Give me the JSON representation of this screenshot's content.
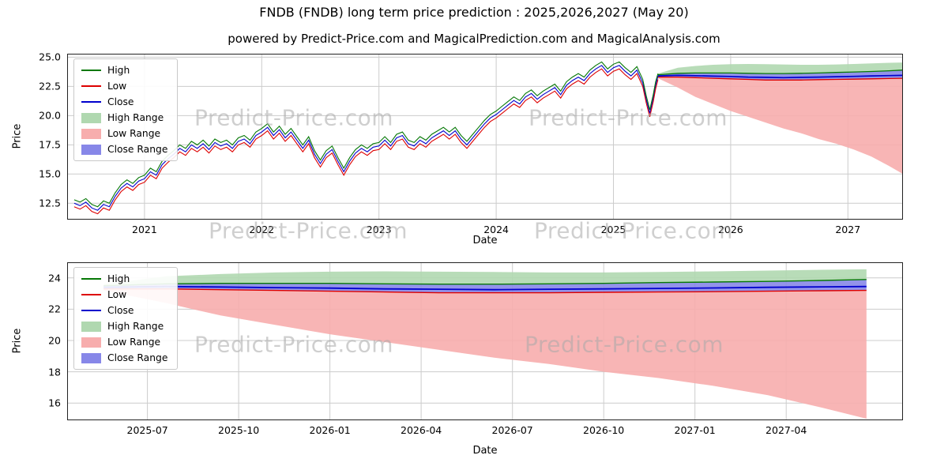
{
  "figure": {
    "title": "FNDB (FNDB) long term price prediction : 2025,2026,2027 (May 20)",
    "subtitle": "powered by Predict-Price.com and MagicalPrediction.com and MagicalAnalysis.com"
  },
  "watermark": {
    "text": "Predict-Price.com"
  },
  "legend": {
    "entries": [
      {
        "label": "High",
        "kind": "line",
        "color": "#067806"
      },
      {
        "label": "Low",
        "kind": "line",
        "color": "#dd0000"
      },
      {
        "label": "Close",
        "kind": "line",
        "color": "#0000cd"
      },
      {
        "label": "High Range",
        "kind": "patch",
        "color": "#b0d8b0"
      },
      {
        "label": "Low Range",
        "kind": "patch",
        "color": "#f7adad"
      },
      {
        "label": "Close Range",
        "kind": "patch",
        "color": "#8787e8"
      }
    ]
  },
  "chart_data": [
    {
      "type": "line",
      "name": "history-and-prediction",
      "xlabel": "Date",
      "ylabel": "Price",
      "xlim": [
        2020.34,
        2027.47
      ],
      "ylim": [
        11.1,
        25.3
      ],
      "grid_color": "#cccccc",
      "xticks": [
        {
          "v": 2021,
          "label": "2021"
        },
        {
          "v": 2022,
          "label": "2022"
        },
        {
          "v": 2023,
          "label": "2023"
        },
        {
          "v": 2024,
          "label": "2024"
        },
        {
          "v": 2025,
          "label": "2025"
        },
        {
          "v": 2026,
          "label": "2026"
        },
        {
          "v": 2027,
          "label": "2027"
        }
      ],
      "yticks": [
        {
          "v": 12.5,
          "label": "12.5"
        },
        {
          "v": 15.0,
          "label": "15.0"
        },
        {
          "v": 17.5,
          "label": "17.5"
        },
        {
          "v": 20.0,
          "label": "20.0"
        },
        {
          "v": 22.5,
          "label": "22.5"
        },
        {
          "v": 25.0,
          "label": "25.0"
        }
      ],
      "bands": [
        {
          "name": "low-range-band",
          "x": "pred_x",
          "top": "pred_close_lo",
          "bottom": "pred_low",
          "color": "#f7adad",
          "opacity": 0.9
        },
        {
          "name": "high-range-band",
          "x": "pred_x",
          "top": "pred_high",
          "bottom": "pred_close_hi",
          "color": "#b0d8b0",
          "opacity": 0.9
        },
        {
          "name": "close-range-band",
          "x": "pred_x",
          "top": "pred_close_hi",
          "bottom": "pred_close_lo",
          "color": "#8787e8",
          "opacity": 0.9
        }
      ],
      "lines": [
        {
          "name": "hist-close-line",
          "x": "hist_x",
          "y": "hist_close",
          "color": "#0000cd",
          "w": 1.1
        },
        {
          "name": "hist-high-line",
          "x": "hist_x",
          "y": "hist_high",
          "color": "#067806",
          "w": 1.1
        },
        {
          "name": "hist-low-line",
          "x": "hist_x",
          "y": "hist_low",
          "color": "#dd0000",
          "w": 1.1
        },
        {
          "name": "pred-high-line",
          "x": "pred_x",
          "y": "pred_close_hi",
          "color": "#067806",
          "w": 1.3
        },
        {
          "name": "pred-low-line",
          "x": "pred_x",
          "y": "pred_close_lo",
          "color": "#dd0000",
          "w": 1.3
        },
        {
          "name": "pred-close-line",
          "x": "pred_x",
          "y": "pred_close",
          "color": "#0000cd",
          "w": 1.7
        }
      ],
      "data": {
        "hist_x": [
          2020.4,
          2020.45,
          2020.5,
          2020.55,
          2020.6,
          2020.65,
          2020.7,
          2020.75,
          2020.8,
          2020.85,
          2020.9,
          2020.95,
          2021.0,
          2021.05,
          2021.1,
          2021.15,
          2021.2,
          2021.25,
          2021.3,
          2021.35,
          2021.4,
          2021.45,
          2021.5,
          2021.55,
          2021.6,
          2021.65,
          2021.7,
          2021.75,
          2021.8,
          2021.85,
          2021.9,
          2021.95,
          2022.0,
          2022.05,
          2022.1,
          2022.15,
          2022.2,
          2022.25,
          2022.3,
          2022.35,
          2022.4,
          2022.45,
          2022.5,
          2022.55,
          2022.6,
          2022.65,
          2022.7,
          2022.75,
          2022.8,
          2022.85,
          2022.9,
          2022.95,
          2023.0,
          2023.05,
          2023.1,
          2023.15,
          2023.2,
          2023.25,
          2023.3,
          2023.35,
          2023.4,
          2023.45,
          2023.5,
          2023.55,
          2023.6,
          2023.65,
          2023.7,
          2023.75,
          2023.8,
          2023.85,
          2023.9,
          2023.95,
          2024.0,
          2024.05,
          2024.1,
          2024.15,
          2024.2,
          2024.25,
          2024.3,
          2024.35,
          2024.4,
          2024.45,
          2024.5,
          2024.55,
          2024.6,
          2024.65,
          2024.7,
          2024.75,
          2024.8,
          2024.85,
          2024.9,
          2024.95,
          2025.0,
          2025.05,
          2025.1,
          2025.15,
          2025.2,
          2025.25,
          2025.28,
          2025.31,
          2025.34,
          2025.36,
          2025.38
        ],
        "hist_close": [
          12.5,
          12.3,
          12.6,
          12.1,
          11.9,
          12.4,
          12.2,
          13.1,
          13.8,
          14.2,
          13.9,
          14.4,
          14.6,
          15.2,
          14.9,
          15.8,
          16.3,
          16.7,
          17.2,
          16.9,
          17.5,
          17.2,
          17.6,
          17.1,
          17.7,
          17.4,
          17.6,
          17.2,
          17.8,
          18.0,
          17.6,
          18.3,
          18.6,
          19.0,
          18.3,
          18.8,
          18.1,
          18.6,
          17.9,
          17.2,
          17.9,
          16.7,
          15.9,
          16.7,
          17.1,
          16.1,
          15.2,
          16.1,
          16.8,
          17.2,
          16.9,
          17.3,
          17.4,
          17.9,
          17.4,
          18.1,
          18.3,
          17.6,
          17.4,
          17.9,
          17.6,
          18.1,
          18.4,
          18.7,
          18.3,
          18.7,
          18.0,
          17.5,
          18.1,
          18.7,
          19.3,
          19.8,
          20.1,
          20.5,
          20.9,
          21.3,
          21.0,
          21.6,
          21.9,
          21.4,
          21.8,
          22.1,
          22.4,
          21.8,
          22.6,
          23.0,
          23.3,
          23.0,
          23.6,
          24.0,
          24.3,
          23.7,
          24.1,
          24.3,
          23.8,
          23.4,
          23.9,
          22.8,
          21.4,
          20.2,
          21.5,
          22.6,
          23.4
        ],
        "hist_high": [
          12.8,
          12.6,
          12.9,
          12.4,
          12.2,
          12.7,
          12.5,
          13.4,
          14.1,
          14.5,
          14.2,
          14.7,
          14.9,
          15.5,
          15.2,
          16.1,
          16.6,
          17.0,
          17.5,
          17.2,
          17.8,
          17.5,
          17.9,
          17.4,
          18.0,
          17.7,
          17.9,
          17.5,
          18.1,
          18.3,
          17.9,
          18.6,
          18.9,
          19.3,
          18.6,
          19.1,
          18.4,
          18.9,
          18.2,
          17.5,
          18.2,
          17.0,
          16.2,
          17.0,
          17.4,
          16.4,
          15.5,
          16.4,
          17.1,
          17.5,
          17.2,
          17.6,
          17.7,
          18.2,
          17.7,
          18.4,
          18.6,
          17.9,
          17.7,
          18.2,
          17.9,
          18.4,
          18.7,
          19.0,
          18.6,
          19.0,
          18.3,
          17.8,
          18.4,
          19.0,
          19.6,
          20.1,
          20.4,
          20.8,
          21.2,
          21.6,
          21.3,
          21.9,
          22.2,
          21.7,
          22.1,
          22.4,
          22.7,
          22.1,
          22.9,
          23.3,
          23.6,
          23.3,
          23.9,
          24.3,
          24.6,
          24.0,
          24.4,
          24.6,
          24.1,
          23.7,
          24.2,
          23.1,
          21.7,
          20.5,
          21.8,
          22.9,
          23.6
        ],
        "hist_low": [
          12.2,
          12.0,
          12.3,
          11.8,
          11.6,
          12.1,
          11.9,
          12.8,
          13.5,
          13.9,
          13.6,
          14.1,
          14.3,
          14.9,
          14.6,
          15.5,
          16.0,
          16.4,
          16.9,
          16.6,
          17.2,
          16.9,
          17.3,
          16.8,
          17.4,
          17.1,
          17.3,
          16.9,
          17.5,
          17.7,
          17.3,
          18.0,
          18.3,
          18.7,
          18.0,
          18.5,
          17.8,
          18.3,
          17.6,
          16.9,
          17.6,
          16.4,
          15.6,
          16.4,
          16.8,
          15.8,
          14.9,
          15.8,
          16.5,
          16.9,
          16.6,
          17.0,
          17.1,
          17.6,
          17.1,
          17.8,
          18.0,
          17.3,
          17.1,
          17.6,
          17.3,
          17.8,
          18.1,
          18.4,
          18.0,
          18.4,
          17.7,
          17.2,
          17.8,
          18.4,
          19.0,
          19.5,
          19.8,
          20.2,
          20.6,
          21.0,
          20.7,
          21.3,
          21.6,
          21.1,
          21.5,
          21.8,
          22.1,
          21.5,
          22.3,
          22.7,
          23.0,
          22.7,
          23.3,
          23.7,
          24.0,
          23.4,
          23.8,
          24.0,
          23.5,
          23.1,
          23.6,
          22.5,
          21.1,
          19.9,
          21.2,
          22.3,
          23.1
        ],
        "pred_x": [
          2025.38,
          2025.55,
          2025.7,
          2025.85,
          2026.0,
          2026.15,
          2026.3,
          2026.45,
          2026.6,
          2026.75,
          2026.9,
          2027.05,
          2027.2,
          2027.35,
          2027.47
        ],
        "pred_high": [
          23.6,
          24.1,
          24.25,
          24.35,
          24.4,
          24.42,
          24.4,
          24.38,
          24.35,
          24.35,
          24.38,
          24.42,
          24.47,
          24.52,
          24.55
        ],
        "pred_close_hi": [
          23.5,
          23.62,
          23.65,
          23.65,
          23.65,
          23.62,
          23.6,
          23.6,
          23.62,
          23.65,
          23.7,
          23.74,
          23.78,
          23.84,
          23.9
        ],
        "pred_close": [
          23.4,
          23.45,
          23.42,
          23.38,
          23.35,
          23.3,
          23.28,
          23.25,
          23.28,
          23.3,
          23.33,
          23.36,
          23.4,
          23.43,
          23.45
        ],
        "pred_close_lo": [
          23.3,
          23.3,
          23.25,
          23.2,
          23.15,
          23.1,
          23.05,
          23.05,
          23.05,
          23.08,
          23.1,
          23.12,
          23.15,
          23.18,
          23.2
        ],
        "pred_low": [
          23.2,
          22.4,
          21.6,
          21.0,
          20.4,
          19.9,
          19.4,
          18.9,
          18.5,
          18.0,
          17.6,
          17.1,
          16.5,
          15.7,
          15.0
        ]
      }
    },
    {
      "type": "line",
      "name": "prediction-detail",
      "xlabel": "Date",
      "ylabel": "Price",
      "xlim": [
        2025.28,
        2027.57
      ],
      "ylim": [
        14.9,
        25.0
      ],
      "grid_color": "#cccccc",
      "xticks": [
        {
          "v": 2025.5,
          "label": "2025-07"
        },
        {
          "v": 2025.75,
          "label": "2025-10"
        },
        {
          "v": 2026.0,
          "label": "2026-01"
        },
        {
          "v": 2026.25,
          "label": "2026-04"
        },
        {
          "v": 2026.5,
          "label": "2026-07"
        },
        {
          "v": 2026.75,
          "label": "2026-10"
        },
        {
          "v": 2027.0,
          "label": "2027-01"
        },
        {
          "v": 2027.25,
          "label": "2027-04"
        }
      ],
      "yticks": [
        {
          "v": 16,
          "label": "16"
        },
        {
          "v": 18,
          "label": "18"
        },
        {
          "v": 20,
          "label": "20"
        },
        {
          "v": 22,
          "label": "22"
        },
        {
          "v": 24,
          "label": "24"
        }
      ],
      "bands": [
        {
          "name": "low-range-band",
          "x": "pred_x",
          "top": "pred_close_lo",
          "bottom": "pred_low",
          "color": "#f7adad",
          "opacity": 0.9
        },
        {
          "name": "high-range-band",
          "x": "pred_x",
          "top": "pred_high",
          "bottom": "pred_close_hi",
          "color": "#b0d8b0",
          "opacity": 0.9
        },
        {
          "name": "close-range-band",
          "x": "pred_x",
          "top": "pred_close_hi",
          "bottom": "pred_close_lo",
          "color": "#8787e8",
          "opacity": 0.9
        }
      ],
      "lines": [
        {
          "name": "pred-high-line",
          "x": "pred_x",
          "y": "pred_close_hi",
          "color": "#067806",
          "w": 1.4
        },
        {
          "name": "pred-low-line",
          "x": "pred_x",
          "y": "pred_close_lo",
          "color": "#dd0000",
          "w": 1.4
        },
        {
          "name": "pred-close-line",
          "x": "pred_x",
          "y": "pred_close",
          "color": "#0000cd",
          "w": 1.8
        }
      ],
      "data": {
        "pred_x": [
          2025.38,
          2025.55,
          2025.7,
          2025.85,
          2026.0,
          2026.15,
          2026.3,
          2026.45,
          2026.6,
          2026.75,
          2026.9,
          2027.05,
          2027.2,
          2027.35,
          2027.47
        ],
        "pred_high": [
          23.6,
          24.1,
          24.25,
          24.35,
          24.4,
          24.42,
          24.4,
          24.38,
          24.35,
          24.35,
          24.38,
          24.42,
          24.47,
          24.52,
          24.55
        ],
        "pred_close_hi": [
          23.5,
          23.62,
          23.65,
          23.65,
          23.65,
          23.62,
          23.6,
          23.6,
          23.62,
          23.65,
          23.7,
          23.74,
          23.78,
          23.84,
          23.9
        ],
        "pred_close": [
          23.4,
          23.45,
          23.42,
          23.38,
          23.35,
          23.3,
          23.28,
          23.25,
          23.28,
          23.3,
          23.33,
          23.36,
          23.4,
          23.43,
          23.45
        ],
        "pred_close_lo": [
          23.3,
          23.3,
          23.25,
          23.2,
          23.15,
          23.1,
          23.05,
          23.05,
          23.05,
          23.08,
          23.1,
          23.12,
          23.15,
          23.18,
          23.2
        ],
        "pred_low": [
          23.2,
          22.4,
          21.6,
          21.0,
          20.4,
          19.9,
          19.4,
          18.9,
          18.5,
          18.0,
          17.6,
          17.1,
          16.5,
          15.7,
          15.0
        ]
      }
    }
  ]
}
